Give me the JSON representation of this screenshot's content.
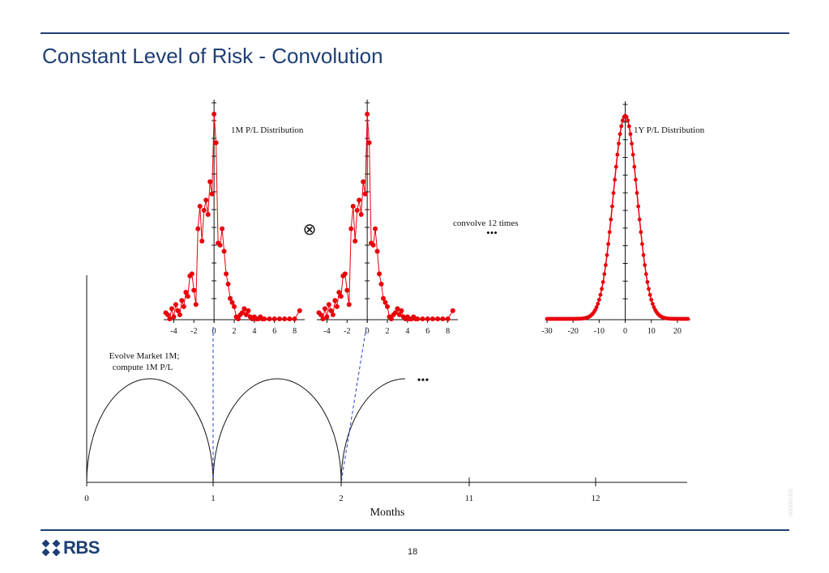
{
  "slide": {
    "title": "Constant Level of Risk - Convolution",
    "page_number": "18",
    "logo_text": "RBS",
    "side_code": "RBS00000"
  },
  "diagram": {
    "left_dist_label": "1M P/L Distribution",
    "right_dist_label": "1Y P/L Distribution",
    "convolve_label": "convolve 12 times",
    "operator_symbol": "⊗",
    "ellipsis": "•••",
    "evolve_label_line1": "Evolve Market 1M;",
    "evolve_label_line2": "compute 1M P/L",
    "timeline_axis_label": "Months",
    "timeline_ticks": [
      "0",
      "1",
      "2",
      "11",
      "12"
    ],
    "small_x_ticks": [
      "-4",
      "-2",
      "0",
      "2",
      "4",
      "6",
      "8"
    ],
    "big_x_ticks": [
      "-30",
      "-20",
      "-10",
      "0",
      "10",
      "20"
    ],
    "colors": {
      "points": "#e8000a",
      "arc": "#111111",
      "dashed": "#2a3fd0",
      "brand": "#1d3f75"
    }
  },
  "chart_data": [
    {
      "type": "scatter",
      "name": "1M P/L Distribution",
      "title": "1M P/L Distribution",
      "x": [
        -4.8,
        -4.6,
        -4.4,
        -4.2,
        -4.0,
        -3.8,
        -3.6,
        -3.4,
        -3.2,
        -3.0,
        -2.8,
        -2.6,
        -2.4,
        -2.2,
        -2.0,
        -1.8,
        -1.6,
        -1.4,
        -1.2,
        -1.0,
        -0.8,
        -0.6,
        -0.4,
        -0.2,
        0.0,
        0.2,
        0.4,
        0.6,
        0.8,
        1.0,
        1.2,
        1.4,
        1.6,
        1.8,
        2.0,
        2.2,
        2.4,
        2.6,
        2.8,
        3.0,
        3.2,
        3.4,
        3.6,
        3.8,
        4.0,
        4.2,
        4.4,
        4.6,
        4.8,
        5.0,
        5.5,
        6.0,
        6.5,
        7.0,
        7.5,
        8.0,
        8.5
      ],
      "y": [
        0.03,
        0.02,
        0.0,
        0.05,
        0.01,
        0.07,
        0.04,
        0.02,
        0.09,
        0.06,
        0.13,
        0.11,
        0.21,
        0.22,
        0.14,
        0.07,
        0.44,
        0.55,
        0.38,
        0.53,
        0.58,
        0.51,
        0.67,
        0.61,
        1.0,
        0.86,
        0.37,
        0.36,
        0.44,
        0.33,
        0.22,
        0.17,
        0.1,
        0.08,
        0.06,
        0.01,
        0.0,
        0.02,
        0.03,
        0.05,
        0.02,
        0.04,
        0.01,
        0.0,
        0.01,
        0.0,
        0.0,
        0.01,
        0.0,
        0.0,
        0.0,
        0.0,
        0.0,
        0.0,
        0.0,
        0.0,
        0.04
      ],
      "xlim": [
        -5,
        9
      ],
      "xticks": [
        -4,
        -2,
        0,
        2,
        4,
        6,
        8
      ]
    },
    {
      "type": "scatter",
      "name": "1M P/L Distribution (copy)",
      "x": [
        -4.8,
        -4.6,
        -4.4,
        -4.2,
        -4.0,
        -3.8,
        -3.6,
        -3.4,
        -3.2,
        -3.0,
        -2.8,
        -2.6,
        -2.4,
        -2.2,
        -2.0,
        -1.8,
        -1.6,
        -1.4,
        -1.2,
        -1.0,
        -0.8,
        -0.6,
        -0.4,
        -0.2,
        0.0,
        0.2,
        0.4,
        0.6,
        0.8,
        1.0,
        1.2,
        1.4,
        1.6,
        1.8,
        2.0,
        2.2,
        2.4,
        2.6,
        2.8,
        3.0,
        3.2,
        3.4,
        3.6,
        3.8,
        4.0,
        4.2,
        4.4,
        4.6,
        4.8,
        5.0,
        5.5,
        6.0,
        6.5,
        7.0,
        7.5,
        8.0,
        8.5
      ],
      "y": [
        0.03,
        0.02,
        0.0,
        0.05,
        0.01,
        0.07,
        0.04,
        0.02,
        0.09,
        0.06,
        0.13,
        0.11,
        0.21,
        0.22,
        0.14,
        0.07,
        0.44,
        0.55,
        0.38,
        0.53,
        0.58,
        0.51,
        0.67,
        0.61,
        1.0,
        0.86,
        0.37,
        0.36,
        0.44,
        0.33,
        0.22,
        0.17,
        0.1,
        0.08,
        0.06,
        0.01,
        0.0,
        0.02,
        0.03,
        0.05,
        0.02,
        0.04,
        0.01,
        0.0,
        0.01,
        0.0,
        0.0,
        0.01,
        0.0,
        0.0,
        0.0,
        0.0,
        0.0,
        0.0,
        0.0,
        0.0,
        0.04
      ],
      "xlim": [
        -5,
        9
      ],
      "xticks": [
        -4,
        -2,
        0,
        2,
        4,
        6,
        8
      ]
    },
    {
      "type": "scatter",
      "name": "1Y P/L Distribution",
      "title": "1Y P/L Distribution",
      "distribution": "gaussian",
      "mean": 0,
      "std": 4.6,
      "x_from": -30,
      "x_to": 24,
      "x_step": 0.5,
      "xlim": [
        -30,
        25
      ],
      "xticks": [
        -30,
        -20,
        -10,
        0,
        10,
        20
      ]
    }
  ]
}
